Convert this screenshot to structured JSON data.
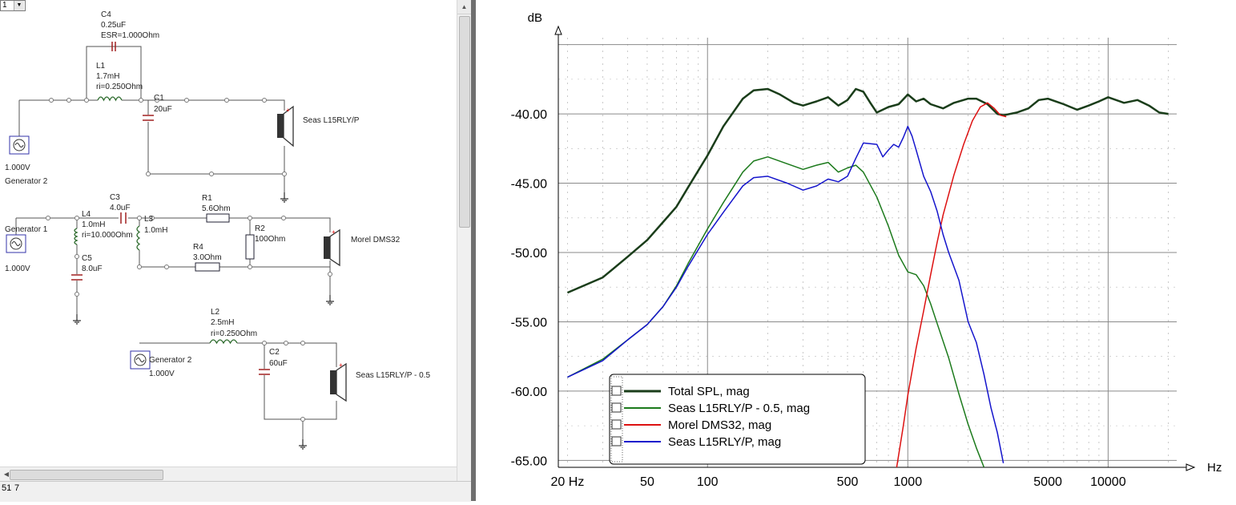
{
  "toolbar": {
    "combo_value": "1"
  },
  "status": {
    "left": "51",
    "right": "7"
  },
  "schematic": {
    "circuit1": {
      "c4": {
        "name": "C4",
        "value": "0.25uF",
        "esr": "ESR=1.000Ohm"
      },
      "l1": {
        "name": "L1",
        "value": "1.7mH",
        "ri": "ri=0.250Ohm"
      },
      "c1": {
        "name": "C1",
        "value": "20uF"
      },
      "speaker": "Seas L15RLY/P",
      "gen_value": "1.000V",
      "gen_name": "Generator 2"
    },
    "circuit2": {
      "gen_name": "Generator 1",
      "gen_value": "1.000V",
      "c3": {
        "name": "C3",
        "value": "4.0uF"
      },
      "l4": {
        "name": "L4",
        "value": "1.0mH",
        "ri": "ri=10.000Ohm"
      },
      "l3": {
        "name": "L3",
        "value": "1.0mH"
      },
      "r1": {
        "name": "R1",
        "value": "5.6Ohm"
      },
      "r2": {
        "name": "R2",
        "value": "100Ohm"
      },
      "r4": {
        "name": "R4",
        "value": "3.0Ohm"
      },
      "c5": {
        "name": "C5",
        "value": "8.0uF"
      },
      "speaker": "Morel DMS32"
    },
    "circuit3": {
      "l2": {
        "name": "L2",
        "value": "2.5mH",
        "ri": "ri=0.250Ohm"
      },
      "gen_name": "Generator 2",
      "gen_value": "1.000V",
      "c2": {
        "name": "C2",
        "value": "60uF"
      },
      "speaker": "Seas L15RLY/P - 0.5"
    }
  },
  "chart_data": {
    "type": "line",
    "ylabel": "dB",
    "xlabel": "Hz",
    "x_scale": "log",
    "xlim": [
      18,
      22000
    ],
    "ylim": [
      -65.5,
      -34.5
    ],
    "grid": true,
    "y_ticks": [
      -40,
      -45,
      -50,
      -55,
      -60,
      -65
    ],
    "y_tick_labels": [
      "-40.00",
      "-45.00",
      "-50.00",
      "-55.00",
      "-60.00",
      "-65.00"
    ],
    "x_ticks": [
      20,
      50,
      100,
      500,
      1000,
      5000,
      10000
    ],
    "x_tick_labels": [
      "20 Hz",
      "50",
      "100",
      "500",
      "1000",
      "5000",
      "10000"
    ],
    "legend_position": "bottom-left",
    "series": [
      {
        "name": "Total SPL, mag",
        "color": "#1a3d1a",
        "width": 2.5,
        "points": [
          [
            20,
            -52.9
          ],
          [
            30,
            -51.8
          ],
          [
            40,
            -50.3
          ],
          [
            50,
            -49.1
          ],
          [
            60,
            -47.8
          ],
          [
            70,
            -46.7
          ],
          [
            80,
            -45.3
          ],
          [
            100,
            -43.0
          ],
          [
            120,
            -40.9
          ],
          [
            150,
            -38.9
          ],
          [
            170,
            -38.3
          ],
          [
            200,
            -38.2
          ],
          [
            230,
            -38.6
          ],
          [
            270,
            -39.2
          ],
          [
            300,
            -39.4
          ],
          [
            350,
            -39.1
          ],
          [
            400,
            -38.8
          ],
          [
            450,
            -39.4
          ],
          [
            500,
            -39.0
          ],
          [
            550,
            -38.2
          ],
          [
            600,
            -38.4
          ],
          [
            650,
            -39.2
          ],
          [
            700,
            -39.9
          ],
          [
            800,
            -39.5
          ],
          [
            900,
            -39.3
          ],
          [
            1000,
            -38.6
          ],
          [
            1100,
            -39.1
          ],
          [
            1200,
            -38.9
          ],
          [
            1300,
            -39.3
          ],
          [
            1500,
            -39.6
          ],
          [
            1700,
            -39.2
          ],
          [
            2000,
            -38.9
          ],
          [
            2200,
            -38.9
          ],
          [
            2500,
            -39.3
          ],
          [
            2800,
            -40.0
          ],
          [
            3000,
            -40.1
          ],
          [
            3500,
            -39.9
          ],
          [
            4000,
            -39.6
          ],
          [
            4500,
            -39.0
          ],
          [
            5000,
            -38.9
          ],
          [
            6000,
            -39.3
          ],
          [
            7000,
            -39.7
          ],
          [
            8000,
            -39.4
          ],
          [
            9000,
            -39.1
          ],
          [
            10000,
            -38.8
          ],
          [
            12000,
            -39.2
          ],
          [
            14000,
            -39.0
          ],
          [
            16000,
            -39.4
          ],
          [
            18000,
            -39.9
          ],
          [
            20000,
            -40.0
          ]
        ]
      },
      {
        "name": "Seas L15RLY/P - 0.5, mag",
        "color": "#1c7a1c",
        "width": 1.5,
        "points": [
          [
            20,
            -59.0
          ],
          [
            30,
            -57.7
          ],
          [
            40,
            -56.3
          ],
          [
            50,
            -55.2
          ],
          [
            60,
            -53.9
          ],
          [
            70,
            -52.4
          ],
          [
            80,
            -50.8
          ],
          [
            100,
            -48.3
          ],
          [
            120,
            -46.4
          ],
          [
            150,
            -44.2
          ],
          [
            170,
            -43.4
          ],
          [
            200,
            -43.1
          ],
          [
            250,
            -43.6
          ],
          [
            300,
            -44.0
          ],
          [
            350,
            -43.7
          ],
          [
            400,
            -43.5
          ],
          [
            450,
            -44.2
          ],
          [
            500,
            -43.9
          ],
          [
            550,
            -43.7
          ],
          [
            600,
            -44.2
          ],
          [
            700,
            -46.0
          ],
          [
            800,
            -48.1
          ],
          [
            900,
            -50.2
          ],
          [
            1000,
            -51.4
          ],
          [
            1100,
            -51.6
          ],
          [
            1200,
            -52.4
          ],
          [
            1300,
            -53.7
          ],
          [
            1400,
            -55.1
          ],
          [
            1600,
            -57.6
          ],
          [
            1800,
            -60.2
          ],
          [
            2000,
            -62.4
          ],
          [
            2200,
            -64.1
          ],
          [
            2400,
            -65.5
          ]
        ]
      },
      {
        "name": "Morel DMS32, mag",
        "color": "#dd1111",
        "width": 1.5,
        "points": [
          [
            880,
            -65.5
          ],
          [
            950,
            -62.5
          ],
          [
            1000,
            -60.3
          ],
          [
            1100,
            -56.9
          ],
          [
            1200,
            -54.2
          ],
          [
            1300,
            -51.6
          ],
          [
            1400,
            -49.3
          ],
          [
            1500,
            -47.3
          ],
          [
            1700,
            -44.4
          ],
          [
            1900,
            -42.2
          ],
          [
            2100,
            -40.5
          ],
          [
            2300,
            -39.5
          ],
          [
            2500,
            -39.2
          ],
          [
            2700,
            -39.6
          ],
          [
            2900,
            -40.1
          ],
          [
            3100,
            -40.2
          ]
        ]
      },
      {
        "name": "Seas L15RLY/P, mag",
        "color": "#1515cc",
        "width": 1.5,
        "points": [
          [
            20,
            -59.0
          ],
          [
            30,
            -57.8
          ],
          [
            40,
            -56.3
          ],
          [
            50,
            -55.2
          ],
          [
            60,
            -53.9
          ],
          [
            70,
            -52.5
          ],
          [
            80,
            -51.0
          ],
          [
            100,
            -48.7
          ],
          [
            120,
            -47.1
          ],
          [
            150,
            -45.2
          ],
          [
            170,
            -44.6
          ],
          [
            200,
            -44.5
          ],
          [
            250,
            -45.0
          ],
          [
            300,
            -45.5
          ],
          [
            350,
            -45.2
          ],
          [
            400,
            -44.7
          ],
          [
            450,
            -44.9
          ],
          [
            500,
            -44.5
          ],
          [
            550,
            -43.2
          ],
          [
            600,
            -42.1
          ],
          [
            700,
            -42.2
          ],
          [
            750,
            -43.1
          ],
          [
            800,
            -42.6
          ],
          [
            850,
            -42.2
          ],
          [
            900,
            -42.4
          ],
          [
            950,
            -41.7
          ],
          [
            1000,
            -40.9
          ],
          [
            1050,
            -41.6
          ],
          [
            1100,
            -42.6
          ],
          [
            1200,
            -44.5
          ],
          [
            1300,
            -45.6
          ],
          [
            1400,
            -47.0
          ],
          [
            1500,
            -48.7
          ],
          [
            1600,
            -50.0
          ],
          [
            1800,
            -52.0
          ],
          [
            2000,
            -55.0
          ],
          [
            2200,
            -56.5
          ],
          [
            2400,
            -58.8
          ],
          [
            2600,
            -61.2
          ],
          [
            2800,
            -63.0
          ],
          [
            3000,
            -65.2
          ]
        ]
      }
    ]
  }
}
